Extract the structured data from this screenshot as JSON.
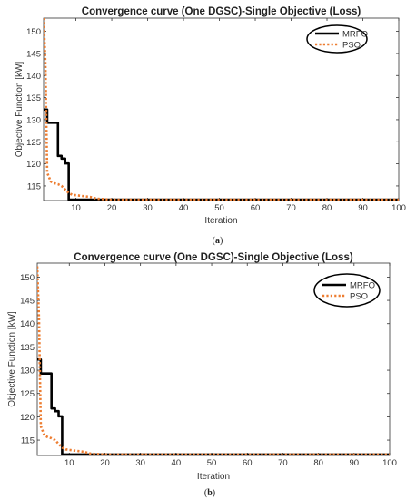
{
  "chart_data": [
    {
      "type": "line",
      "panel_label": "(a)",
      "title": "Convergence curve (One DGSC)-Single Objective (Loss)",
      "xlabel": "Iteration",
      "ylabel": "Objective Function [kW]",
      "xlim": [
        1,
        100
      ],
      "ylim": [
        111.7,
        153
      ],
      "xticks": [
        10,
        20,
        30,
        40,
        50,
        60,
        70,
        80,
        90,
        100
      ],
      "yticks": [
        115,
        120,
        125,
        130,
        135,
        140,
        145,
        150
      ],
      "grid": false,
      "legend_position": "top-right",
      "legend_style": "ellipse",
      "series": [
        {
          "name": "MRFO",
          "color": "#000000",
          "style": "solid",
          "x": [
            1,
            2,
            2,
            5,
            5,
            6,
            6,
            7,
            7,
            8,
            8,
            100
          ],
          "y": [
            132.3,
            132.3,
            129.3,
            129.3,
            121.8,
            121.8,
            121.2,
            121.2,
            120.1,
            120.1,
            111.9,
            111.9
          ]
        },
        {
          "name": "PSO",
          "color": "#ED7D31",
          "style": "dotted",
          "x": [
            1,
            1.5,
            2,
            3,
            4,
            5,
            6,
            7,
            8,
            9,
            10,
            11,
            12,
            13,
            14,
            15,
            16,
            18,
            20,
            25,
            30,
            100
          ],
          "y": [
            153,
            143,
            118,
            116,
            115.6,
            115.4,
            115,
            114.2,
            113.4,
            113,
            112.9,
            112.8,
            112.7,
            112.6,
            112.5,
            112.3,
            112.1,
            112,
            111.9,
            111.9,
            111.9,
            111.9
          ]
        }
      ]
    },
    {
      "type": "line",
      "panel_label": "(b)",
      "title": "Convergence curve (One DGSC)-Single Objective (Loss)",
      "xlabel": "Iteration",
      "ylabel": "Objective Function [kW]",
      "xlim": [
        1,
        100
      ],
      "ylim": [
        111.7,
        153
      ],
      "xticks": [
        10,
        20,
        30,
        40,
        50,
        60,
        70,
        80,
        90,
        100
      ],
      "yticks": [
        115,
        120,
        125,
        130,
        135,
        140,
        145,
        150
      ],
      "grid": false,
      "legend_position": "top-right",
      "legend_style": "ellipse",
      "series": [
        {
          "name": "MRFO",
          "color": "#000000",
          "style": "solid",
          "x": [
            1,
            2,
            2,
            5,
            5,
            6,
            6,
            7,
            7,
            8,
            8,
            100
          ],
          "y": [
            132.3,
            132.3,
            129.3,
            129.3,
            121.8,
            121.8,
            121.2,
            121.2,
            120.1,
            120.1,
            111.9,
            111.9
          ]
        },
        {
          "name": "PSO",
          "color": "#ED7D31",
          "style": "dotted",
          "x": [
            1,
            1.5,
            2,
            3,
            4,
            5,
            6,
            7,
            8,
            9,
            10,
            11,
            12,
            13,
            14,
            15,
            16,
            18,
            20,
            25,
            30,
            100
          ],
          "y": [
            152.3,
            141,
            118,
            116,
            115.6,
            115.4,
            115,
            114.2,
            113.4,
            113,
            112.9,
            112.8,
            112.7,
            112.6,
            112.5,
            112.3,
            112.1,
            112,
            111.9,
            111.9,
            111.9,
            111.9
          ]
        }
      ]
    }
  ]
}
